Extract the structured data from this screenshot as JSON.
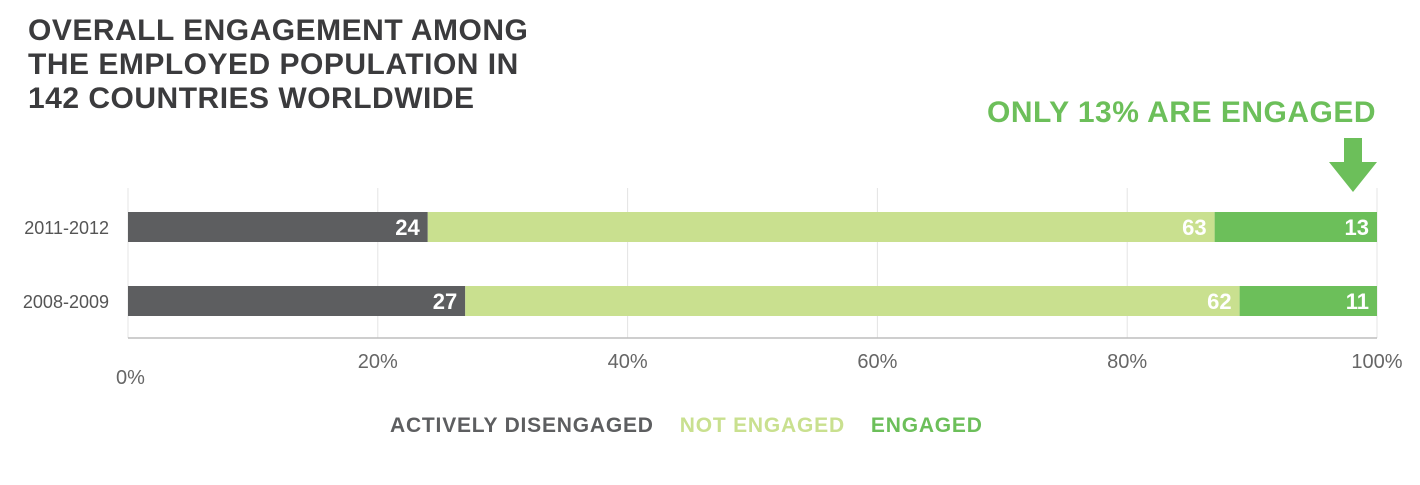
{
  "title": "OVERALL ENGAGEMENT AMONG THE EMPLOYED POPULATION IN 142 COUNTRIES WORLDWIDE",
  "callout": "ONLY 13% ARE ENGAGED",
  "colors": {
    "actively_disengaged": "#5d5e60",
    "not_engaged": "#c9e08f",
    "engaged": "#6cbf5a",
    "callout": "#6cbf5a"
  },
  "legend": {
    "actively_disengaged": "ACTIVELY DISENGAGED",
    "not_engaged": "NOT ENGAGED",
    "engaged": "ENGAGED"
  },
  "chart_data": {
    "type": "bar",
    "orientation": "horizontal",
    "stacked": true,
    "categories": [
      "2011-2012",
      "2008-2009"
    ],
    "series": [
      {
        "name": "ACTIVELY DISENGAGED",
        "values": [
          24,
          27
        ]
      },
      {
        "name": "NOT ENGAGED",
        "values": [
          63,
          62
        ]
      },
      {
        "name": "ENGAGED",
        "values": [
          13,
          11
        ]
      }
    ],
    "x_ticks": [
      "0%",
      "20%",
      "40%",
      "60%",
      "80%",
      "100%"
    ],
    "xlim": [
      0,
      100
    ],
    "grid": true,
    "legend_position": "bottom"
  }
}
